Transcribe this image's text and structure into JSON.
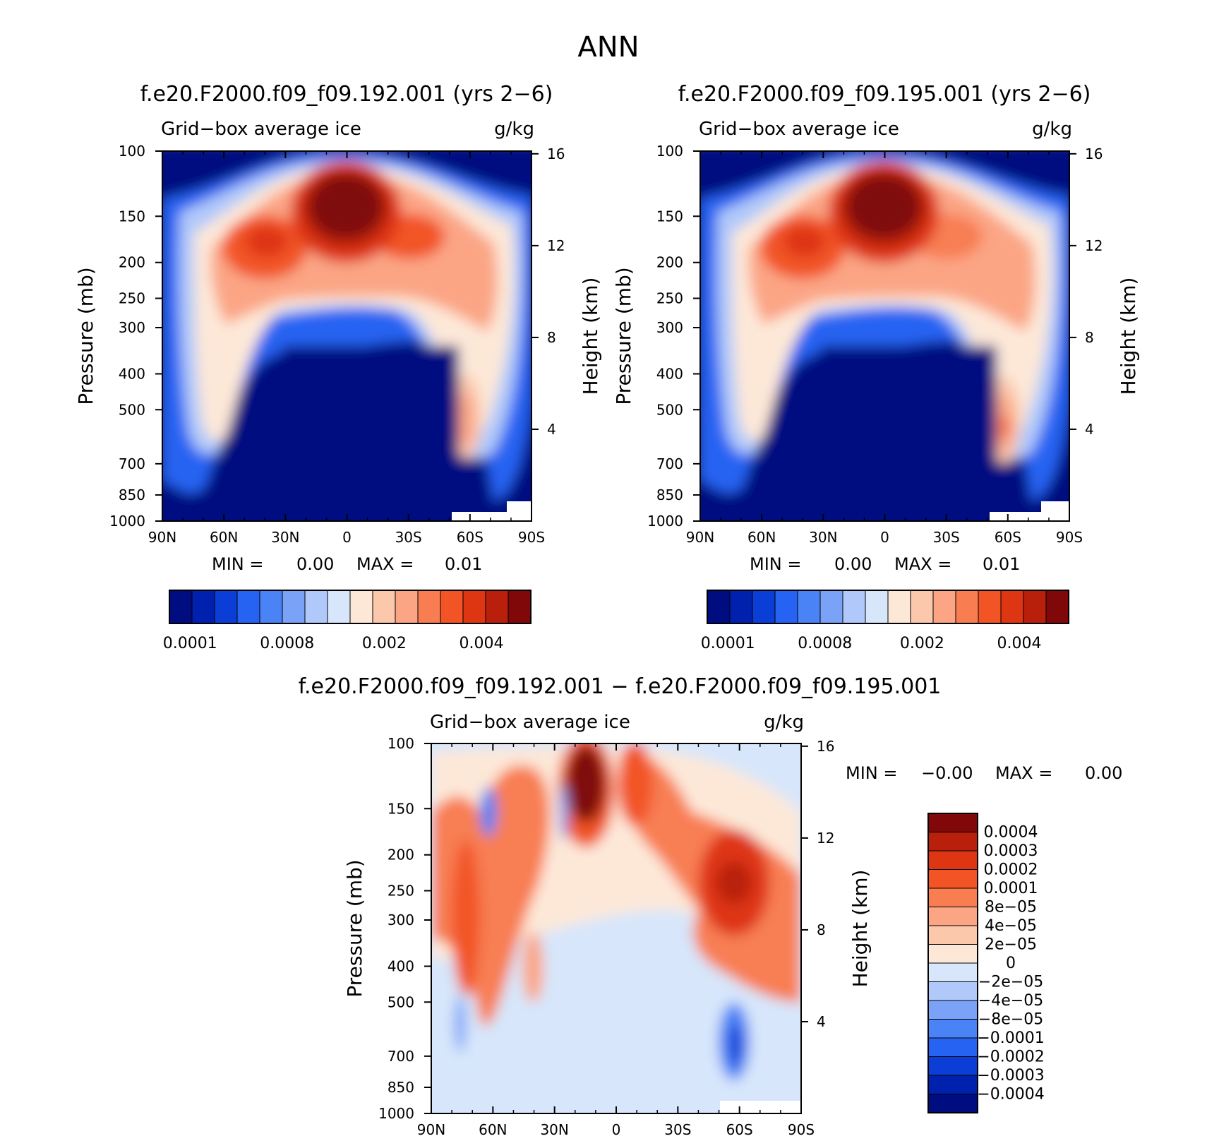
{
  "figure_title": "ANN",
  "chart_data": [
    {
      "type": "heatmap",
      "id": "p1",
      "title": "f.e20.F2000.f09_f09.192.001 (yrs 2−6)",
      "subtitle_left": "Grid−box average ice",
      "subtitle_right": "g/kg",
      "ylabel": "Pressure (mb)",
      "ylabel_right": "Height (km)",
      "x_ticks": [
        "90N",
        "60N",
        "30N",
        "0",
        "30S",
        "60S",
        "90S"
      ],
      "y_ticks": [
        "100",
        "150",
        "200",
        "250",
        "300",
        "400",
        "500",
        "700",
        "850",
        "1000"
      ],
      "y_ticks_right": [
        "16",
        "12",
        "8",
        "4"
      ],
      "xlim": [
        90,
        -90
      ],
      "ylim": [
        1000,
        100
      ],
      "y_scale": "log",
      "stats": {
        "min_label": "MIN =",
        "min_value": "0.00",
        "max_label": "MAX =",
        "max_value": "0.01"
      },
      "colorbar_ticks": [
        "0.0001",
        "0.0008",
        "0.002",
        "0.004"
      ],
      "legend_placement": "bottom"
    },
    {
      "type": "heatmap",
      "id": "p2",
      "title": "f.e20.F2000.f09_f09.195.001 (yrs 2−6)",
      "subtitle_left": "Grid−box average ice",
      "subtitle_right": "g/kg",
      "ylabel": "Pressure (mb)",
      "ylabel_right": "Height (km)",
      "x_ticks": [
        "90N",
        "60N",
        "30N",
        "0",
        "30S",
        "60S",
        "90S"
      ],
      "y_ticks": [
        "100",
        "150",
        "200",
        "250",
        "300",
        "400",
        "500",
        "700",
        "850",
        "1000"
      ],
      "y_ticks_right": [
        "16",
        "12",
        "8",
        "4"
      ],
      "xlim": [
        90,
        -90
      ],
      "ylim": [
        1000,
        100
      ],
      "y_scale": "log",
      "stats": {
        "min_label": "MIN =",
        "min_value": "0.00",
        "max_label": "MAX =",
        "max_value": "0.01"
      },
      "colorbar_ticks": [
        "0.0001",
        "0.0008",
        "0.002",
        "0.004"
      ],
      "legend_placement": "bottom"
    },
    {
      "type": "heatmap",
      "id": "p3",
      "title": "f.e20.F2000.f09_f09.192.001 − f.e20.F2000.f09_f09.195.001",
      "subtitle_left": "Grid−box average ice",
      "subtitle_right": "g/kg",
      "ylabel": "Pressure (mb)",
      "ylabel_right": "Height (km)",
      "x_ticks": [
        "90N",
        "60N",
        "30N",
        "0",
        "30S",
        "60S",
        "90S"
      ],
      "y_ticks": [
        "100",
        "150",
        "200",
        "250",
        "300",
        "400",
        "500",
        "700",
        "850",
        "1000"
      ],
      "y_ticks_right": [
        "16",
        "12",
        "8",
        "4"
      ],
      "xlim": [
        90,
        -90
      ],
      "ylim": [
        1000,
        100
      ],
      "y_scale": "log",
      "stats": {
        "min_label": "MIN =",
        "min_value": "−0.00",
        "max_label": "MAX =",
        "max_value": "0.00"
      },
      "colorbar_labels": [
        "0.0004",
        "0.0003",
        "0.0002",
        "0.0001",
        "8e−05",
        "4e−05",
        "2e−05",
        "0",
        "−2e−05",
        "−4e−05",
        "−8e−05",
        "−0.0001",
        "−0.0002",
        "−0.0003",
        "−0.0004"
      ],
      "legend_placement": "right"
    }
  ],
  "colors": {
    "sequential": [
      "#000d80",
      "#0021ad",
      "#0a3ed6",
      "#2663f2",
      "#4a83f5",
      "#7aa3f7",
      "#b0c9fa",
      "#d7e6fb",
      "#fde8d8",
      "#fcc8ac",
      "#fba585",
      "#f87e52",
      "#f25426",
      "#de3512",
      "#b9200c",
      "#800808"
    ],
    "diverging": [
      "#800808",
      "#b9200c",
      "#de3512",
      "#f25426",
      "#f87e52",
      "#fba585",
      "#fcc8ac",
      "#fde8d8",
      "#d7e6fb",
      "#b0c9fa",
      "#7aa3f7",
      "#4a83f5",
      "#2663f2",
      "#0a3ed6",
      "#0021ad",
      "#000d80"
    ]
  }
}
